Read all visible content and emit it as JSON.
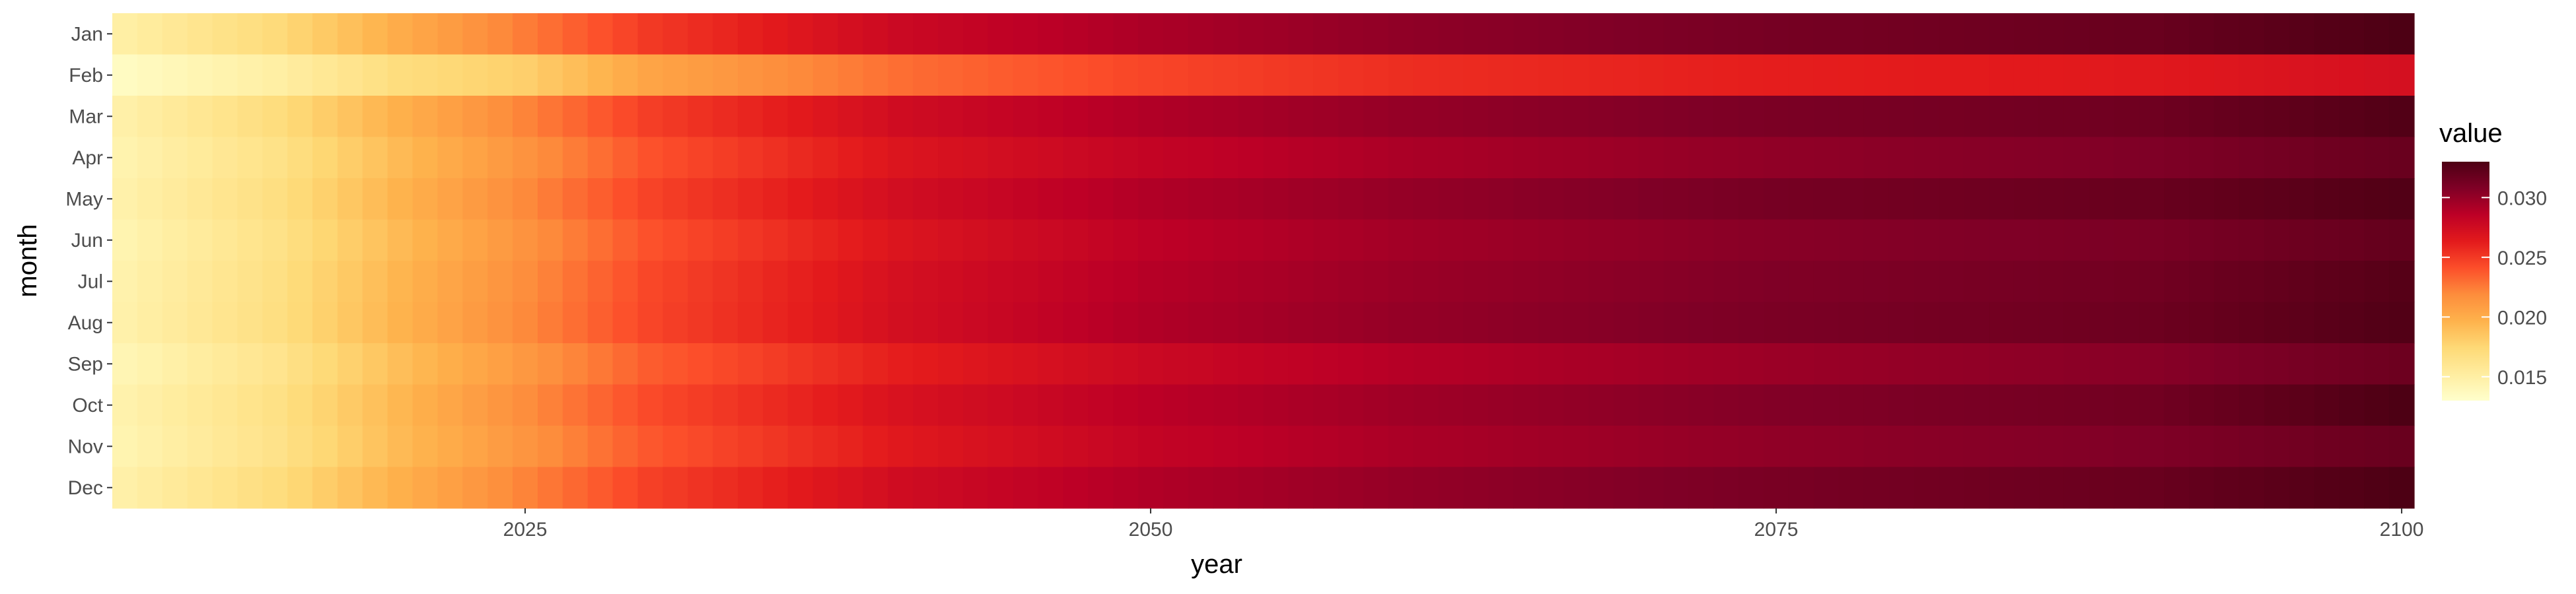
{
  "chart_data": {
    "type": "heatmap",
    "title": "",
    "xlabel": "year",
    "ylabel": "month",
    "x_start": 2009,
    "x_end": 2100,
    "x_ticks": [
      2025,
      2050,
      2075,
      2100
    ],
    "months": [
      "Jan",
      "Feb",
      "Mar",
      "Apr",
      "May",
      "Jun",
      "Jul",
      "Aug",
      "Sep",
      "Oct",
      "Nov",
      "Dec"
    ],
    "grid": false,
    "legend": {
      "title": "value",
      "placement": "right",
      "min": 0.013,
      "max": 0.033,
      "ticks": [
        0.015,
        0.02,
        0.025,
        0.03
      ],
      "tick_labels": [
        "0.015",
        "0.020",
        "0.025",
        "0.030"
      ]
    },
    "color_scale": [
      "#ffffcc",
      "#ffeda0",
      "#fed976",
      "#feb24c",
      "#fd8d3c",
      "#fc4e2a",
      "#e31a1c",
      "#bd0026",
      "#800026",
      "#4d0014"
    ],
    "series": [
      {
        "name": "Jan",
        "anchors": [
          [
            2009,
            0.015
          ],
          [
            2015,
            0.0172
          ],
          [
            2020,
            0.02
          ],
          [
            2025,
            0.0225
          ],
          [
            2030,
            0.025
          ],
          [
            2040,
            0.0278
          ],
          [
            2050,
            0.0292
          ],
          [
            2060,
            0.0302
          ],
          [
            2075,
            0.0312
          ],
          [
            2090,
            0.0318
          ],
          [
            2100,
            0.033
          ]
        ]
      },
      {
        "name": "Feb",
        "anchors": [
          [
            2009,
            0.0135
          ],
          [
            2015,
            0.015
          ],
          [
            2020,
            0.017
          ],
          [
            2025,
            0.018
          ],
          [
            2030,
            0.0205
          ],
          [
            2040,
            0.023
          ],
          [
            2050,
            0.0245
          ],
          [
            2060,
            0.0255
          ],
          [
            2075,
            0.0262
          ],
          [
            2090,
            0.0265
          ],
          [
            2100,
            0.0272
          ]
        ]
      },
      {
        "name": "Mar",
        "anchors": [
          [
            2009,
            0.0148
          ],
          [
            2015,
            0.017
          ],
          [
            2020,
            0.0198
          ],
          [
            2025,
            0.0222
          ],
          [
            2030,
            0.0248
          ],
          [
            2040,
            0.0275
          ],
          [
            2050,
            0.029
          ],
          [
            2060,
            0.03
          ],
          [
            2075,
            0.031
          ],
          [
            2090,
            0.0315
          ],
          [
            2100,
            0.0328
          ]
        ]
      },
      {
        "name": "Apr",
        "anchors": [
          [
            2009,
            0.0145
          ],
          [
            2015,
            0.0165
          ],
          [
            2020,
            0.0192
          ],
          [
            2025,
            0.0215
          ],
          [
            2030,
            0.024
          ],
          [
            2040,
            0.0268
          ],
          [
            2050,
            0.0282
          ],
          [
            2060,
            0.0292
          ],
          [
            2075,
            0.0302
          ],
          [
            2090,
            0.0308
          ],
          [
            2100,
            0.0318
          ]
        ]
      },
      {
        "name": "May",
        "anchors": [
          [
            2009,
            0.0147
          ],
          [
            2015,
            0.0168
          ],
          [
            2020,
            0.0196
          ],
          [
            2025,
            0.022
          ],
          [
            2030,
            0.0246
          ],
          [
            2040,
            0.0274
          ],
          [
            2050,
            0.029
          ],
          [
            2060,
            0.03
          ],
          [
            2075,
            0.0312
          ],
          [
            2090,
            0.0318
          ],
          [
            2100,
            0.0328
          ]
        ]
      },
      {
        "name": "Jun",
        "anchors": [
          [
            2009,
            0.0144
          ],
          [
            2015,
            0.0165
          ],
          [
            2020,
            0.0192
          ],
          [
            2025,
            0.0215
          ],
          [
            2030,
            0.024
          ],
          [
            2040,
            0.0268
          ],
          [
            2050,
            0.0285
          ],
          [
            2060,
            0.0295
          ],
          [
            2075,
            0.0305
          ],
          [
            2090,
            0.031
          ],
          [
            2100,
            0.032
          ]
        ]
      },
      {
        "name": "Jul",
        "anchors": [
          [
            2009,
            0.0146
          ],
          [
            2015,
            0.0167
          ],
          [
            2020,
            0.0195
          ],
          [
            2025,
            0.0218
          ],
          [
            2030,
            0.0244
          ],
          [
            2040,
            0.0272
          ],
          [
            2050,
            0.0288
          ],
          [
            2060,
            0.0298
          ],
          [
            2075,
            0.0308
          ],
          [
            2090,
            0.0314
          ],
          [
            2100,
            0.0326
          ]
        ]
      },
      {
        "name": "Aug",
        "anchors": [
          [
            2009,
            0.0147
          ],
          [
            2015,
            0.0168
          ],
          [
            2020,
            0.0196
          ],
          [
            2025,
            0.022
          ],
          [
            2030,
            0.0245
          ],
          [
            2040,
            0.0273
          ],
          [
            2050,
            0.029
          ],
          [
            2060,
            0.03
          ],
          [
            2075,
            0.031
          ],
          [
            2090,
            0.0316
          ],
          [
            2100,
            0.0328
          ]
        ]
      },
      {
        "name": "Sep",
        "anchors": [
          [
            2009,
            0.0142
          ],
          [
            2015,
            0.0162
          ],
          [
            2020,
            0.019
          ],
          [
            2025,
            0.0212
          ],
          [
            2030,
            0.0236
          ],
          [
            2040,
            0.0262
          ],
          [
            2050,
            0.0278
          ],
          [
            2060,
            0.0288
          ],
          [
            2075,
            0.0298
          ],
          [
            2090,
            0.0305
          ],
          [
            2100,
            0.0316
          ]
        ]
      },
      {
        "name": "Oct",
        "anchors": [
          [
            2009,
            0.0146
          ],
          [
            2015,
            0.0166
          ],
          [
            2020,
            0.0194
          ],
          [
            2025,
            0.0218
          ],
          [
            2030,
            0.0243
          ],
          [
            2040,
            0.027
          ],
          [
            2050,
            0.0286
          ],
          [
            2060,
            0.0296
          ],
          [
            2075,
            0.0307
          ],
          [
            2090,
            0.0314
          ],
          [
            2100,
            0.033
          ]
        ]
      },
      {
        "name": "Nov",
        "anchors": [
          [
            2009,
            0.0144
          ],
          [
            2015,
            0.0164
          ],
          [
            2020,
            0.0192
          ],
          [
            2025,
            0.0214
          ],
          [
            2030,
            0.0238
          ],
          [
            2040,
            0.0265
          ],
          [
            2050,
            0.0282
          ],
          [
            2060,
            0.0292
          ],
          [
            2075,
            0.0302
          ],
          [
            2090,
            0.0308
          ],
          [
            2100,
            0.0318
          ]
        ]
      },
      {
        "name": "Dec",
        "anchors": [
          [
            2009,
            0.0148
          ],
          [
            2015,
            0.017
          ],
          [
            2020,
            0.0198
          ],
          [
            2025,
            0.0222
          ],
          [
            2030,
            0.0247
          ],
          [
            2040,
            0.0275
          ],
          [
            2050,
            0.029
          ],
          [
            2060,
            0.03
          ],
          [
            2075,
            0.0311
          ],
          [
            2090,
            0.0318
          ],
          [
            2100,
            0.033
          ]
        ]
      }
    ]
  }
}
